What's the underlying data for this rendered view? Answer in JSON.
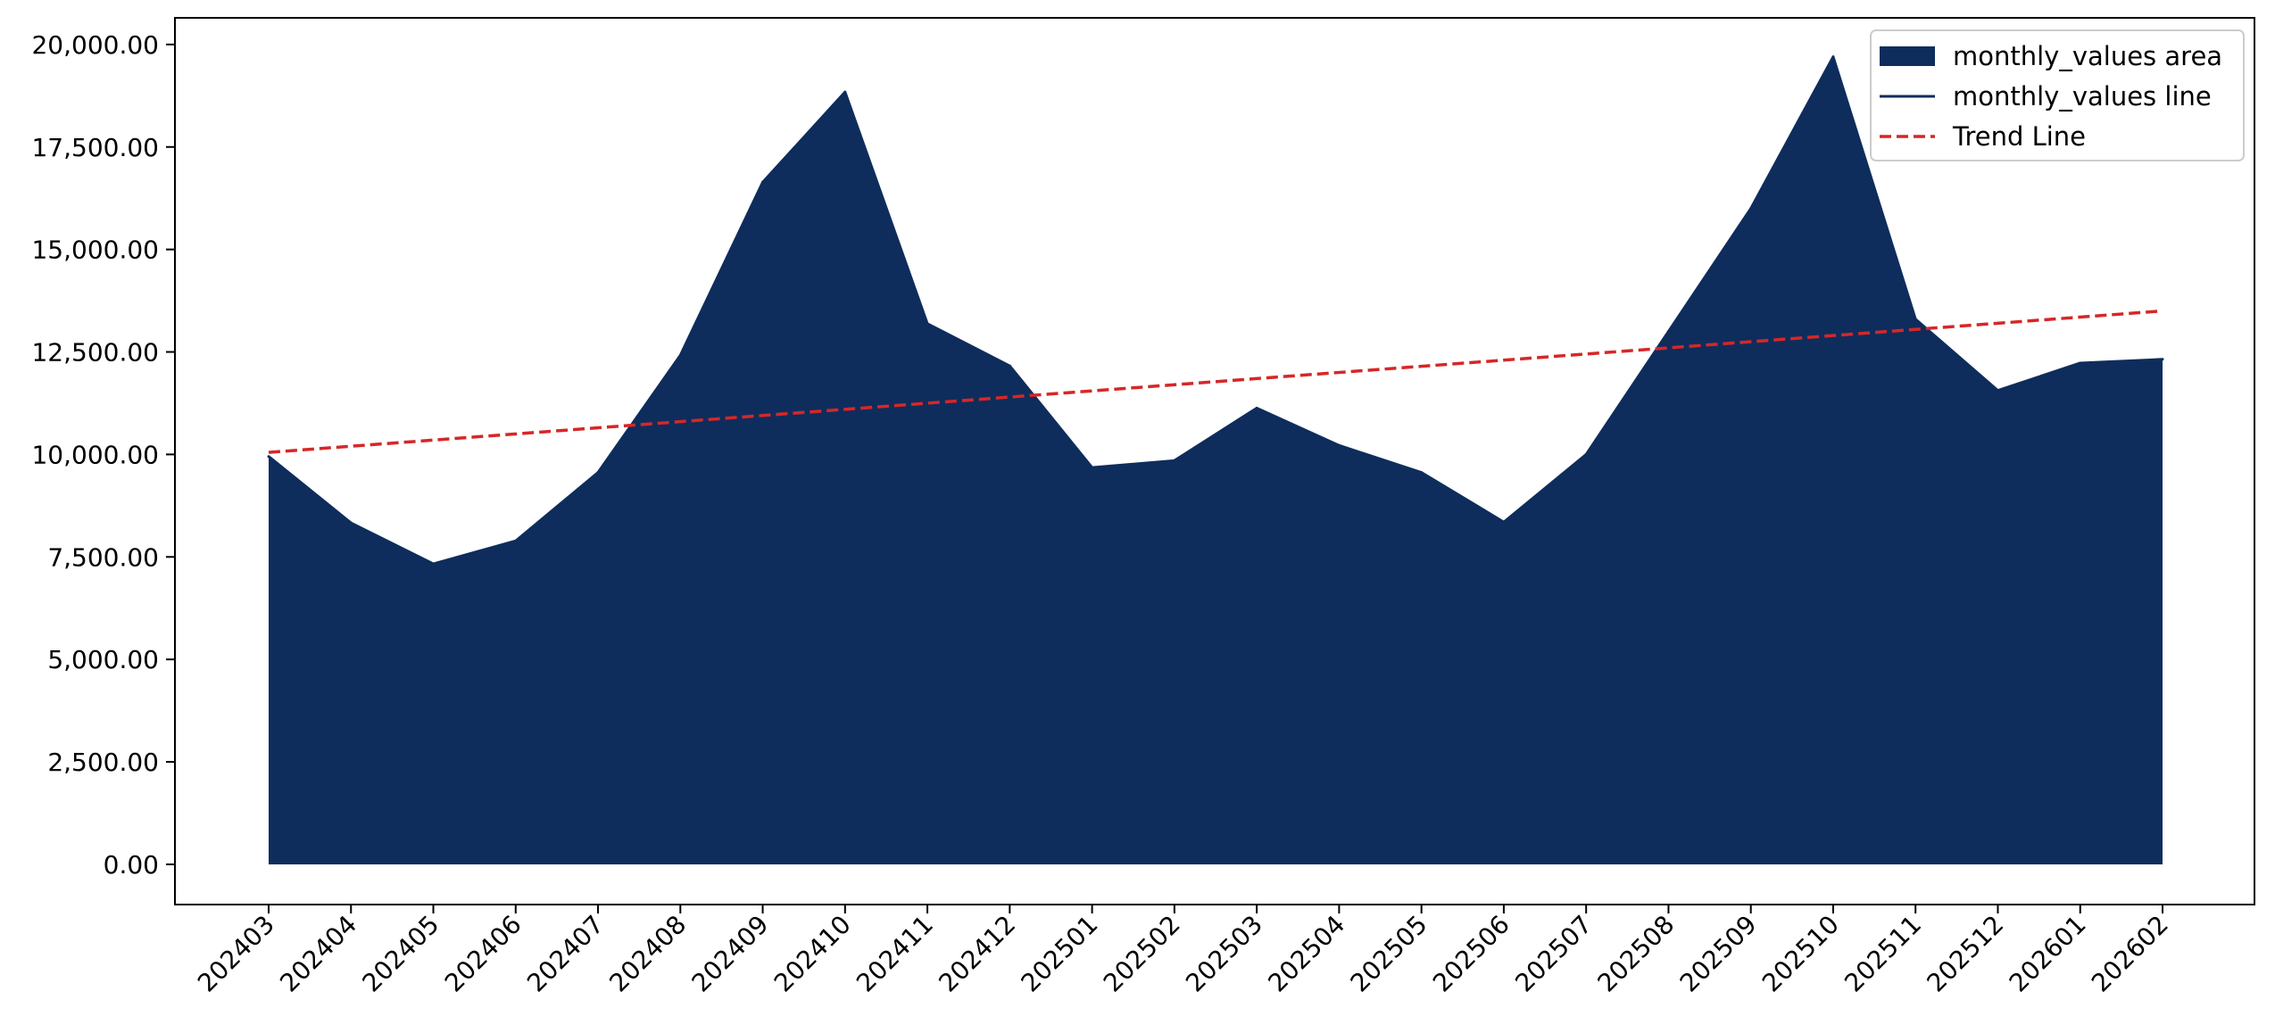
{
  "chart_data": {
    "type": "area",
    "title": "",
    "xlabel": "",
    "ylabel": "",
    "categories": [
      "202403",
      "202404",
      "202405",
      "202406",
      "202407",
      "202408",
      "202409",
      "202410",
      "202411",
      "202412",
      "202501",
      "202502",
      "202503",
      "202504",
      "202505",
      "202506",
      "202507",
      "202508",
      "202509",
      "202510",
      "202511",
      "202512",
      "202601",
      "202602"
    ],
    "series": [
      {
        "name": "monthly_values area",
        "kind": "area",
        "color": "#0e2d5c",
        "values": [
          9950,
          8330,
          7330,
          7890,
          9560,
          12420,
          16640,
          18840,
          13190,
          12160,
          9680,
          9850,
          11130,
          10220,
          9560,
          8350,
          10000,
          13000,
          16000,
          19700,
          13300,
          11560,
          12230,
          12320
        ]
      },
      {
        "name": "monthly_values line",
        "kind": "line",
        "color": "#0e2d5c",
        "values": [
          9950,
          8330,
          7330,
          7890,
          9560,
          12420,
          16640,
          18840,
          13190,
          12160,
          9680,
          9850,
          11130,
          10220,
          9560,
          8350,
          10000,
          13000,
          16000,
          19700,
          13300,
          11560,
          12230,
          12320
        ]
      },
      {
        "name": "Trend Line",
        "kind": "trend",
        "color": "#d62728",
        "start": 10050,
        "end": 13500
      }
    ],
    "yticks": [
      0,
      2500,
      5000,
      7500,
      10000,
      12500,
      15000,
      17500,
      20000
    ],
    "ytick_labels": [
      "0.00",
      "2,500.00",
      "5,000.00",
      "7,500.00",
      "10,000.00",
      "12,500.00",
      "15,000.00",
      "17,500.00",
      "20,000.00"
    ],
    "ylim": [
      -980,
      20650
    ],
    "grid": false,
    "legend_position": "top-right"
  }
}
